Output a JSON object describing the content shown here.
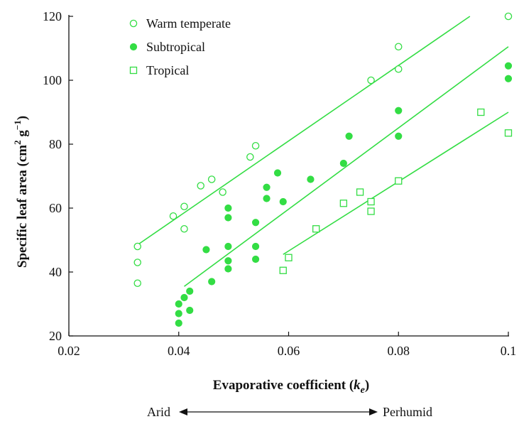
{
  "chart_data": {
    "type": "scatter",
    "xlabel": {
      "main": "Evaporative coefficient (",
      "var": "k",
      "sub": "e",
      "tail": ")"
    },
    "ylabel": {
      "main": "Specific leaf area (cm",
      "sup1": "2",
      "mid": " g",
      "sup2": "−1",
      "tail": ")"
    },
    "xlim": [
      0.02,
      0.1
    ],
    "ylim": [
      20,
      120
    ],
    "x_ticks": [
      0.02,
      0.04,
      0.06,
      0.08,
      0.1
    ],
    "x_tick_labels": [
      "0.02",
      "0.04",
      "0.06",
      "0.08",
      "0.1"
    ],
    "y_ticks": [
      20,
      40,
      60,
      80,
      100,
      120
    ],
    "y_tick_labels": [
      "20",
      "40",
      "60",
      "80",
      "100",
      "120"
    ],
    "grid": false,
    "legend_position": "top-left",
    "color": "#33dd44",
    "series": [
      {
        "name": "Warm temperate",
        "marker": "open-circle",
        "points": [
          [
            0.0325,
            48
          ],
          [
            0.0325,
            43
          ],
          [
            0.0325,
            36.5
          ],
          [
            0.039,
            57.5
          ],
          [
            0.041,
            60.5
          ],
          [
            0.041,
            53.5
          ],
          [
            0.044,
            67
          ],
          [
            0.046,
            69
          ],
          [
            0.048,
            65
          ],
          [
            0.053,
            76
          ],
          [
            0.054,
            79.5
          ],
          [
            0.075,
            100
          ],
          [
            0.08,
            110.5
          ],
          [
            0.08,
            103.5
          ],
          [
            0.1,
            120
          ]
        ],
        "fit_line": [
          [
            0.0325,
            48.5
          ],
          [
            0.093,
            120
          ]
        ]
      },
      {
        "name": "Subtropical",
        "marker": "filled-circle",
        "points": [
          [
            0.04,
            30
          ],
          [
            0.04,
            27
          ],
          [
            0.04,
            24
          ],
          [
            0.041,
            32
          ],
          [
            0.042,
            34
          ],
          [
            0.042,
            28
          ],
          [
            0.045,
            47
          ],
          [
            0.046,
            37
          ],
          [
            0.049,
            60
          ],
          [
            0.049,
            57
          ],
          [
            0.049,
            48
          ],
          [
            0.049,
            43.5
          ],
          [
            0.049,
            41
          ],
          [
            0.054,
            55.5
          ],
          [
            0.054,
            48
          ],
          [
            0.054,
            44
          ],
          [
            0.056,
            66.5
          ],
          [
            0.056,
            63
          ],
          [
            0.058,
            71
          ],
          [
            0.059,
            62
          ],
          [
            0.064,
            69
          ],
          [
            0.07,
            74
          ],
          [
            0.071,
            82.5
          ],
          [
            0.08,
            90.5
          ],
          [
            0.08,
            82.5
          ],
          [
            0.1,
            104.5
          ],
          [
            0.1,
            100.5
          ]
        ],
        "fit_line": [
          [
            0.041,
            35.5
          ],
          [
            0.1,
            110.5
          ]
        ]
      },
      {
        "name": "Tropical",
        "marker": "open-square",
        "points": [
          [
            0.059,
            40.5
          ],
          [
            0.06,
            44.5
          ],
          [
            0.065,
            53.5
          ],
          [
            0.07,
            61.5
          ],
          [
            0.073,
            65
          ],
          [
            0.075,
            62
          ],
          [
            0.075,
            59
          ],
          [
            0.08,
            68.5
          ],
          [
            0.095,
            90
          ],
          [
            0.1,
            83.5
          ]
        ],
        "fit_line": [
          [
            0.059,
            45.5
          ],
          [
            0.1,
            90
          ]
        ]
      }
    ],
    "annotation": {
      "left": "Arid",
      "right": "Perhumid"
    }
  }
}
